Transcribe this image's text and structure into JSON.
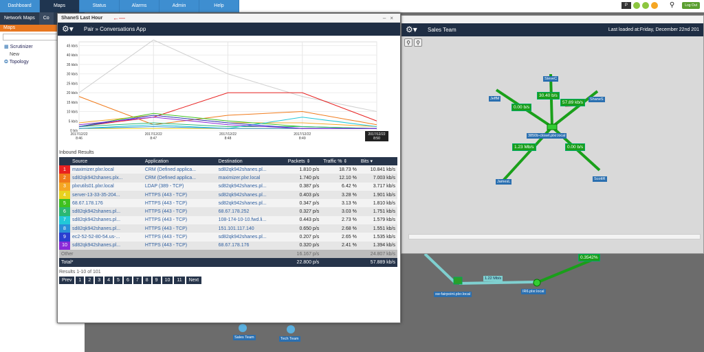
{
  "nav": {
    "tabs": [
      "Dashboard",
      "Maps",
      "Status",
      "Alarms",
      "Admin",
      "Help"
    ],
    "active": "Maps",
    "logout": "Log Out"
  },
  "sidebar": {
    "subtabs": [
      "Network Maps",
      "Co"
    ],
    "maps_header": "Maps",
    "items": [
      "Scrutinizer",
      "New",
      "Topology"
    ]
  },
  "modal": {
    "title": "ShaneS Last Hour",
    "breadcrumb": "Pair » Conversations App",
    "results_title": "Inbound Results",
    "columns": [
      "Source",
      "Application",
      "Destination",
      "Packets",
      "Traffic %",
      "Bits"
    ],
    "rows": [
      {
        "n": "1",
        "color": "#e8201f",
        "source": "maximizer.plxr.local",
        "app": "CRM (Defined applica...",
        "dest": "sd82qk942shanes.pl...",
        "packets": "1.810 p/s",
        "traffic": "18.73 %",
        "bits": "10.841 kb/s"
      },
      {
        "n": "2",
        "color": "#f07a1a",
        "source": "sd82qk942shanes.plx...",
        "app": "CRM (Defined applica...",
        "dest": "maximizer.plxr.local",
        "packets": "1.740 p/s",
        "traffic": "12.10 %",
        "bits": "7.003 kb/s"
      },
      {
        "n": "3",
        "color": "#f5a623",
        "source": "plxrutils01.plxr.local",
        "app": "LDAP (389 - TCP)",
        "dest": "sd82qk942shanes.pl...",
        "packets": "0.387 p/s",
        "traffic": "6.42 %",
        "bits": "3.717 kb/s"
      },
      {
        "n": "4",
        "color": "#e8d21f",
        "source": "server-13-33-35-204...",
        "app": "HTTPS (443 - TCP)",
        "dest": "sd82qk942shanes.pl...",
        "packets": "0.403 p/s",
        "traffic": "3.28 %",
        "bits": "1.901 kb/s"
      },
      {
        "n": "5",
        "color": "#3fc11f",
        "source": "68.67.178.176",
        "app": "HTTPS (443 - TCP)",
        "dest": "sd82qk942shanes.pl...",
        "packets": "0.347 p/s",
        "traffic": "3.13 %",
        "bits": "1.810 kb/s"
      },
      {
        "n": "6",
        "color": "#2bb873",
        "source": "sd82qk942shanes.pl...",
        "app": "HTTPS (443 - TCP)",
        "dest": "68.67.178.252",
        "packets": "0.327 p/s",
        "traffic": "3.03 %",
        "bits": "1.751 kb/s"
      },
      {
        "n": "7",
        "color": "#22c8d8",
        "source": "sd82qk942shanes.pl...",
        "app": "HTTPS (443 - TCP)",
        "dest": "108-174-10-10.fwd.li...",
        "packets": "0.443 p/s",
        "traffic": "2.73 %",
        "bits": "1.579 kb/s"
      },
      {
        "n": "8",
        "color": "#2a8fd8",
        "source": "sd82qk942shanes.pl...",
        "app": "HTTPS (443 - TCP)",
        "dest": "151.101.117.140",
        "packets": "0.650 p/s",
        "traffic": "2.68 %",
        "bits": "1.551 kb/s"
      },
      {
        "n": "9",
        "color": "#2a3fd0",
        "source": "ec2-52-52-80-54.us-...",
        "app": "HTTPS (443 - TCP)",
        "dest": "sd82qk942shanes.pl...",
        "packets": "0.207 p/s",
        "traffic": "2.65 %",
        "bits": "1.535 kb/s"
      },
      {
        "n": "10",
        "color": "#8a2ad8",
        "source": "sd82qk942shanes.pl...",
        "app": "HTTPS (443 - TCP)",
        "dest": "68.67.178.176",
        "packets": "0.320 p/s",
        "traffic": "2.41 %",
        "bits": "1.394 kb/s"
      }
    ],
    "other": {
      "label": "Other",
      "packets": "16.167 p/s",
      "bits": "24.807 kb/s"
    },
    "total": {
      "label": "Total*",
      "packets": "22.800 p/s",
      "bits": "57.889 kb/s"
    },
    "results_meta": "Results 1-10 of 101",
    "pager": [
      "Prev",
      "1",
      "2",
      "3",
      "4",
      "5",
      "6",
      "7",
      "8",
      "9",
      "10",
      "11",
      "Next"
    ]
  },
  "right_panel": {
    "title": "Sales Team",
    "loaded": "Last loaded at:Friday, December 22nd 201",
    "nodes": [
      "SteveC",
      "JeffM",
      "ShaneS",
      "3850b-closet.plxr.local",
      "JamesL",
      "ScottR"
    ],
    "links": [
      "30.40 b/s",
      "0.00 b/s",
      "57.89 kb/s",
      "1.23 Mb/s",
      "0.00 b/s"
    ]
  },
  "bottom_map": {
    "nodes": [
      "sw-fairpoint.plxr.local",
      "IR6.plxr.local",
      "Sales Team",
      "Tech Team"
    ],
    "links": [
      "1.22 Mb/s",
      "0.3542%"
    ]
  },
  "chart_data": {
    "type": "line",
    "x": [
      "2017/12/22 8:46",
      "2017/12/22 8:47",
      "2017/12/22 8:48",
      "2017/12/22 8:49",
      "2017/12/22 8:50"
    ],
    "ylabels": [
      "0 b/s",
      "5 kb/s",
      "10 kb/s",
      "15 kb/s",
      "20 kb/s",
      "25 kb/s",
      "30 kb/s",
      "35 kb/s",
      "40 kb/s",
      "45 kb/s"
    ],
    "ylim": [
      0,
      47
    ],
    "series": [
      {
        "color": "#cfcfcf",
        "values": [
          20,
          48,
          30,
          18,
          10
        ]
      },
      {
        "color": "#e8201f",
        "values": [
          2,
          7,
          20,
          20,
          5
        ]
      },
      {
        "color": "#f07a1a",
        "values": [
          18,
          3,
          8,
          10,
          3
        ]
      },
      {
        "color": "#f5a623",
        "values": [
          4,
          8,
          4,
          4,
          2
        ]
      },
      {
        "color": "#e8d21f",
        "values": [
          1,
          1,
          1,
          1,
          1
        ]
      },
      {
        "color": "#3fc11f",
        "values": [
          2,
          9,
          5,
          2,
          1
        ]
      },
      {
        "color": "#2bb873",
        "values": [
          2,
          4,
          2,
          2,
          1
        ]
      },
      {
        "color": "#22c8d8",
        "values": [
          1,
          3,
          1,
          7,
          2
        ]
      },
      {
        "color": "#2a8fd8",
        "values": [
          1,
          2,
          1,
          1,
          1
        ]
      },
      {
        "color": "#2a3fd0",
        "values": [
          2,
          8,
          4,
          1,
          1
        ]
      },
      {
        "color": "#8a2ad8",
        "values": [
          3,
          7,
          3,
          1,
          1
        ]
      }
    ]
  }
}
